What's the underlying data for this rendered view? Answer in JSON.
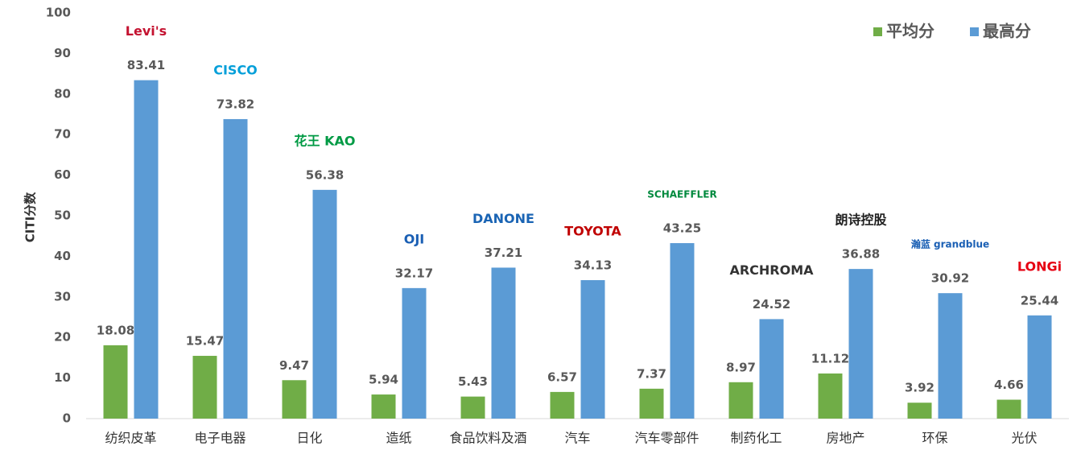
{
  "chart_data": {
    "type": "bar",
    "y_label": "CITI分数",
    "categories": [
      "纺织皮革",
      "电子电器",
      "日化",
      "造纸",
      "食品饮料及酒",
      "汽车",
      "汽车零部件",
      "制药化工",
      "房地产",
      "环保",
      "光伏"
    ],
    "series": [
      {
        "name": "平均分",
        "color": "#70ad47",
        "values": [
          18.08,
          15.47,
          9.47,
          5.94,
          5.43,
          6.57,
          7.37,
          8.97,
          11.12,
          3.92,
          4.66
        ]
      },
      {
        "name": "最高分",
        "color": "#5b9bd5",
        "values": [
          83.41,
          73.82,
          56.38,
          32.17,
          37.21,
          34.13,
          43.25,
          24.52,
          36.88,
          30.92,
          25.44
        ]
      }
    ],
    "annotations": [
      "Levi's",
      "CISCO",
      "花王 KAO",
      "OJI",
      "DANONE",
      "TOYOTA",
      "SCHAEFFLER",
      "ARCHROMA",
      "朗诗控股",
      "瀚蓝 grandblue",
      "LONGi"
    ],
    "annotation_colors": [
      "#c41230",
      "#049fd9",
      "#009a44",
      "#1a5fb4",
      "#1a64b4",
      "#c00000",
      "#00893d",
      "#333333",
      "#222222",
      "#1a5fb4",
      "#e60012"
    ],
    "ylim": [
      0,
      100
    ],
    "yticks": [
      0,
      10,
      20,
      30,
      40,
      50,
      60,
      70,
      80,
      90,
      100
    ],
    "legend": "top-right"
  }
}
